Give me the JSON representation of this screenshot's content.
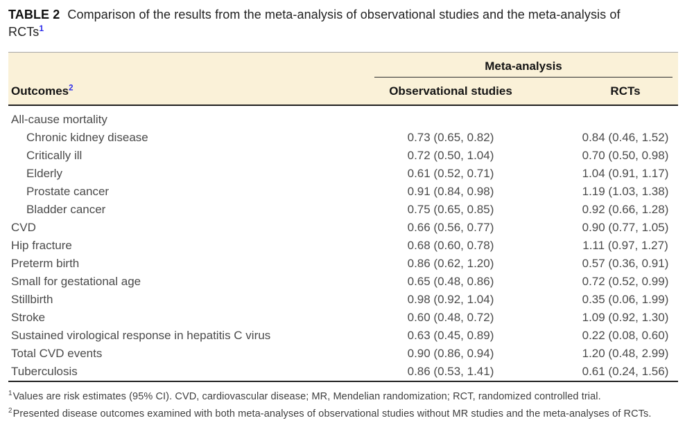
{
  "title": {
    "label": "TABLE 2",
    "text": "Comparison of the results from the meta-analysis of observational studies and the meta-analysis of RCTs",
    "superscript": "1"
  },
  "table": {
    "group_header": "Meta-analysis",
    "outcomes_header": "Outcomes",
    "outcomes_superscript": "2",
    "observational_header": "Observational studies",
    "rct_header": "RCTs",
    "rows": [
      {
        "outcome": "All-cause mortality",
        "indent": false,
        "observational": "",
        "rct": ""
      },
      {
        "outcome": "Chronic kidney disease",
        "indent": true,
        "observational": "0.73 (0.65, 0.82)",
        "rct": "0.84 (0.46, 1.52)"
      },
      {
        "outcome": "Critically ill",
        "indent": true,
        "observational": "0.72 (0.50, 1.04)",
        "rct": "0.70 (0.50, 0.98)"
      },
      {
        "outcome": "Elderly",
        "indent": true,
        "observational": "0.61 (0.52, 0.71)",
        "rct": "1.04 (0.91, 1.17)"
      },
      {
        "outcome": "Prostate cancer",
        "indent": true,
        "observational": "0.91 (0.84, 0.98)",
        "rct": "1.19 (1.03, 1.38)"
      },
      {
        "outcome": "Bladder cancer",
        "indent": true,
        "observational": "0.75 (0.65, 0.85)",
        "rct": "0.92 (0.66, 1.28)"
      },
      {
        "outcome": "CVD",
        "indent": false,
        "observational": "0.66 (0.56, 0.77)",
        "rct": "0.90 (0.77, 1.05)"
      },
      {
        "outcome": "Hip fracture",
        "indent": false,
        "observational": "0.68 (0.60, 0.78)",
        "rct": "1.11 (0.97, 1.27)"
      },
      {
        "outcome": "Preterm birth",
        "indent": false,
        "observational": "0.86 (0.62, 1.20)",
        "rct": "0.57 (0.36, 0.91)"
      },
      {
        "outcome": "Small for gestational age",
        "indent": false,
        "observational": "0.65 (0.48, 0.86)",
        "rct": "0.72 (0.52, 0.99)"
      },
      {
        "outcome": "Stillbirth",
        "indent": false,
        "observational": "0.98 (0.92, 1.04)",
        "rct": "0.35 (0.06, 1.99)"
      },
      {
        "outcome": "Stroke",
        "indent": false,
        "observational": "0.60 (0.48, 0.72)",
        "rct": "1.09 (0.92, 1.30)"
      },
      {
        "outcome": "Sustained virological response in hepatitis C virus",
        "indent": false,
        "observational": "0.63 (0.45, 0.89)",
        "rct": "0.22 (0.08, 0.60)"
      },
      {
        "outcome": "Total CVD events",
        "indent": false,
        "observational": "0.90 (0.86, 0.94)",
        "rct": "1.20 (0.48, 2.99)"
      },
      {
        "outcome": "Tuberculosis",
        "indent": false,
        "observational": "0.86 (0.53, 1.41)",
        "rct": "0.61 (0.24, 1.56)"
      }
    ]
  },
  "footnotes": [
    {
      "marker": "1",
      "text": "Values are risk estimates (95% CI). CVD, cardiovascular disease; MR, Mendelian randomization; RCT, randomized controlled trial."
    },
    {
      "marker": "2",
      "text": "Presented disease outcomes examined with both meta-analyses of observational studies without MR studies and the meta-analyses of RCTs."
    }
  ],
  "colors": {
    "header_background": "#faf1d8",
    "superscript_blue": "#2e2eea",
    "rule_dark": "#1f1f1f",
    "rule_light": "#a6a6a6"
  }
}
